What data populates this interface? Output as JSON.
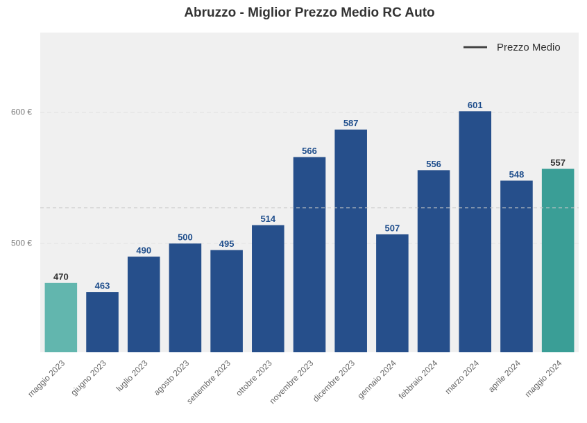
{
  "chart_data": {
    "type": "bar",
    "title": "Abruzzo - Miglior Prezzo Medio RC Auto",
    "categories": [
      "maggio 2023",
      "giugno 2023",
      "luglio 2023",
      "agosto 2023",
      "settembre 2023",
      "ottobre 2023",
      "novembre 2023",
      "dicembre 2023",
      "gennaio 2024",
      "febbraio 2024",
      "marzo 2024",
      "aprile 2024",
      "maggio 2024"
    ],
    "values": [
      470,
      463,
      490,
      500,
      495,
      514,
      566,
      587,
      507,
      556,
      601,
      548,
      557
    ],
    "colors": [
      "#62b6ae",
      "#264f8b",
      "#264f8b",
      "#264f8b",
      "#264f8b",
      "#264f8b",
      "#264f8b",
      "#264f8b",
      "#264f8b",
      "#264f8b",
      "#264f8b",
      "#264f8b",
      "#3a9e96"
    ],
    "ylim": [
      417,
      661
    ],
    "yticks": [
      {
        "value": 500,
        "label": "500 €"
      },
      {
        "value": 600,
        "label": "600 €"
      }
    ],
    "grid": true,
    "reference_line": {
      "name": "Prezzo Medio",
      "value": 527.2,
      "color": "#444444"
    },
    "legend": "upper right"
  }
}
